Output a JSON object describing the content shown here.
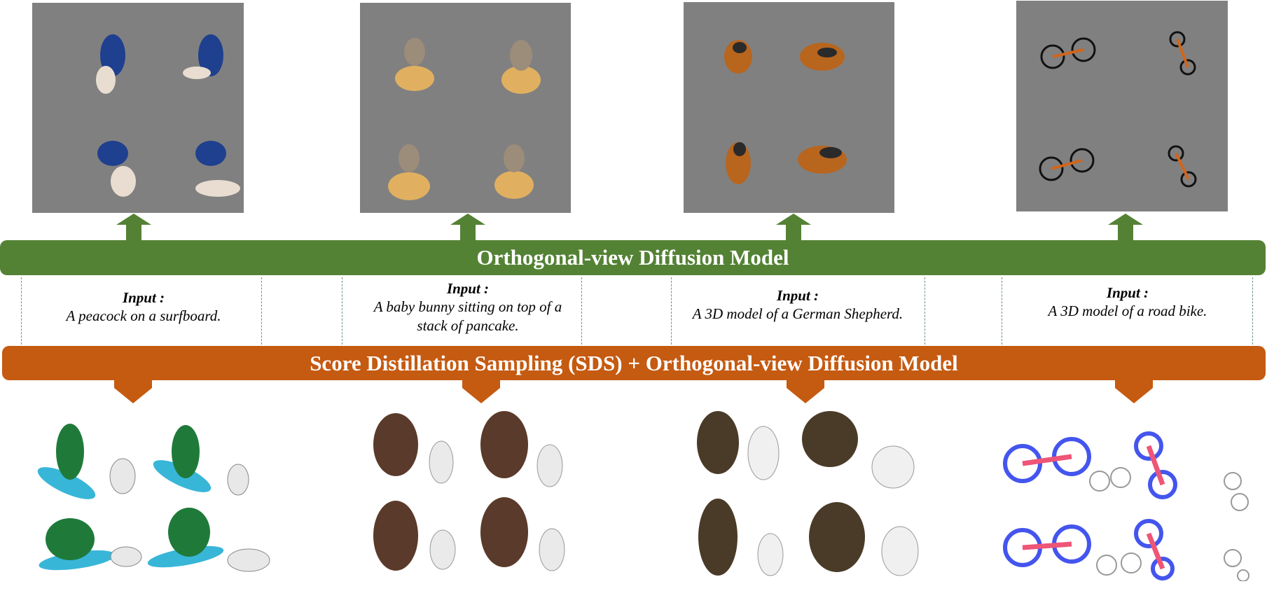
{
  "green_bar": {
    "label": "Orthogonal-view Diffusion Model"
  },
  "orange_bar": {
    "label": "Score Distillation Sampling (SDS) + Orthogonal-view Diffusion Model"
  },
  "colors": {
    "green": "#548235",
    "orange": "#c55a11",
    "panel_gray": "#808080"
  },
  "inputs": [
    {
      "title": "Input :",
      "text": "A peacock on a surfboard."
    },
    {
      "title": "Input :",
      "text": "A baby bunny sitting on top of a stack of pancake."
    },
    {
      "title": "Input :",
      "text": "A 3D model of a German Shepherd."
    },
    {
      "title": "Input :",
      "text": "A 3D model of a road bike."
    }
  ]
}
